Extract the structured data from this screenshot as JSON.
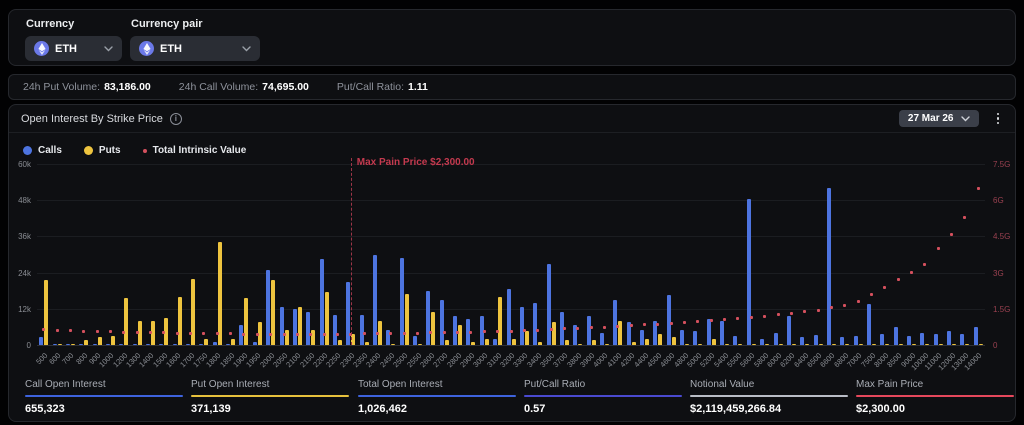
{
  "filters": {
    "currency_label": "Currency",
    "currency_value": "ETH",
    "pair_label": "Currency pair",
    "pair_value": "ETH"
  },
  "summary_bar": {
    "items": [
      {
        "label": "24h Put Volume:",
        "value": "83,186.00"
      },
      {
        "label": "24h Call Volume:",
        "value": "74,695.00"
      },
      {
        "label": "Put/Call Ratio:",
        "value": "1.11"
      }
    ]
  },
  "chart_panel": {
    "title": "Open Interest By Strike Price",
    "date_selector": "27 Mar 26",
    "legend": [
      {
        "label": "Calls",
        "color": "#4d74e0",
        "size": "big"
      },
      {
        "label": "Puts",
        "color": "#eec43f",
        "size": "big"
      },
      {
        "label": "Total Intrinsic Value",
        "color": "#d4505e",
        "size": "small"
      }
    ]
  },
  "chart_data": {
    "type": "bar",
    "title": "Open Interest By Strike Price",
    "xlabel": "Strike Price",
    "left_axis": {
      "ticks": [
        "60k",
        "48k",
        "36k",
        "24k",
        "12k",
        "0"
      ],
      "max": 60000
    },
    "right_axis": {
      "ticks": [
        "7.5G",
        "6G",
        "4.5G",
        "3G",
        "1.5G",
        "0"
      ],
      "max_billions": 7.5
    },
    "max_pain": {
      "strike": 2300,
      "label": "Max Pain Price $2,300.00"
    },
    "categories": [
      500,
      600,
      700,
      800,
      900,
      1000,
      1200,
      1300,
      1400,
      1500,
      1600,
      1700,
      1750,
      1800,
      1850,
      1900,
      1950,
      2000,
      2050,
      2100,
      2150,
      2200,
      2250,
      2300,
      2350,
      2400,
      2450,
      2500,
      2550,
      2600,
      2700,
      2800,
      2900,
      3000,
      3100,
      3200,
      3300,
      3400,
      3500,
      3700,
      3800,
      3900,
      4000,
      4100,
      4200,
      4400,
      4500,
      4600,
      4800,
      5000,
      5200,
      5400,
      5500,
      5600,
      5800,
      6000,
      6200,
      6400,
      6500,
      6600,
      6800,
      7000,
      7500,
      8000,
      8500,
      9000,
      10000,
      11000,
      12000,
      13000,
      14000
    ],
    "series": [
      {
        "name": "Calls",
        "axis": "left",
        "color": "#4d74e0",
        "values": [
          2500,
          200,
          100,
          200,
          100,
          300,
          200,
          300,
          200,
          500,
          500,
          500,
          300,
          1000,
          500,
          6500,
          1000,
          25000,
          12500,
          12000,
          11000,
          28500,
          10000,
          21000,
          10000,
          30000,
          5000,
          29000,
          3000,
          18000,
          15000,
          9500,
          8500,
          9500,
          2000,
          18500,
          12500,
          14000,
          27000,
          11000,
          6500,
          9500,
          4000,
          15000,
          7500,
          5000,
          8000,
          16500,
          5000,
          4500,
          8500,
          8000,
          3000,
          48500,
          2000,
          4000,
          9500,
          2500,
          3300,
          52000,
          2500,
          3000,
          13500,
          3500,
          6000,
          3000,
          4000,
          3500,
          4500,
          3500,
          6000
        ]
      },
      {
        "name": "Puts",
        "axis": "left",
        "color": "#eec43f",
        "values": [
          21500,
          300,
          500,
          1500,
          2500,
          3000,
          15500,
          8000,
          8000,
          9000,
          16000,
          22000,
          2000,
          34000,
          2000,
          15500,
          7500,
          21500,
          5000,
          12500,
          5000,
          17500,
          1500,
          3500,
          1000,
          8000,
          500,
          17000,
          500,
          11000,
          1500,
          6500,
          1000,
          2000,
          16000,
          2000,
          4500,
          1000,
          7500,
          1500,
          500,
          1500,
          500,
          8000,
          1000,
          2000,
          3500,
          2500,
          500,
          500,
          2000,
          500,
          300,
          500,
          200,
          300,
          500,
          200,
          200,
          300,
          200,
          300,
          500,
          200,
          500,
          200,
          300,
          200,
          300,
          200,
          500
        ]
      },
      {
        "name": "Total Intrinsic Value",
        "axis": "right",
        "color": "#d4505e",
        "values_billions": [
          0.65,
          0.62,
          0.6,
          0.58,
          0.57,
          0.55,
          0.53,
          0.52,
          0.51,
          0.5,
          0.49,
          0.48,
          0.47,
          0.46,
          0.46,
          0.45,
          0.45,
          0.44,
          0.44,
          0.44,
          0.44,
          0.44,
          0.45,
          0.45,
          0.46,
          0.47,
          0.47,
          0.48,
          0.49,
          0.5,
          0.51,
          0.52,
          0.53,
          0.55,
          0.56,
          0.58,
          0.6,
          0.62,
          0.64,
          0.67,
          0.69,
          0.72,
          0.74,
          0.77,
          0.8,
          0.83,
          0.86,
          0.89,
          0.93,
          0.97,
          1.01,
          1.05,
          1.1,
          1.15,
          1.2,
          1.26,
          1.32,
          1.38,
          1.45,
          1.55,
          1.65,
          1.8,
          2.1,
          2.4,
          2.7,
          3.0,
          3.35,
          4.0,
          4.6,
          5.3,
          6.5
        ]
      }
    ]
  },
  "footer_stats": [
    {
      "label": "Call Open Interest",
      "value": "655,323",
      "underline": "#3e63dd"
    },
    {
      "label": "Put Open Interest",
      "value": "371,139",
      "underline": "#e7c13d"
    },
    {
      "label": "Total Open Interest",
      "value": "1,026,462",
      "underline": "#3e63dd"
    },
    {
      "label": "Put/Call Ratio",
      "value": "0.57",
      "underline": "#4a4ad0"
    },
    {
      "label": "Notional Value",
      "value": "$2,119,459,266.84",
      "underline": "#b9bdc6"
    },
    {
      "label": "Max Pain Price",
      "value": "$2,300.00",
      "underline": "#e5485c"
    }
  ]
}
